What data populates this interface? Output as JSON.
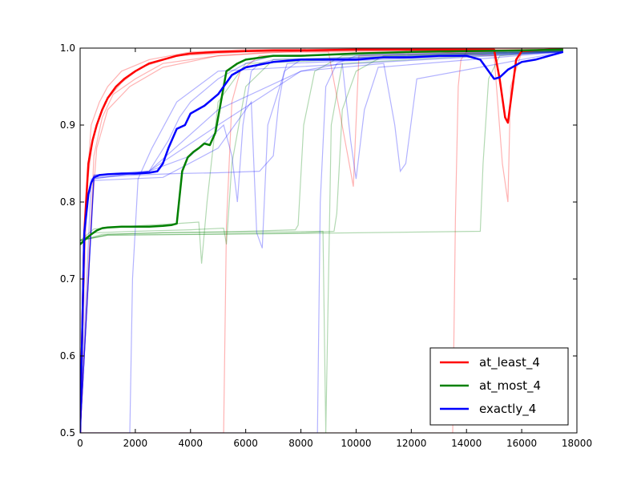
{
  "chart_data": {
    "type": "line",
    "title": "",
    "xlabel": "",
    "ylabel": "",
    "xlim": [
      0,
      18000
    ],
    "ylim": [
      0.5,
      1.0
    ],
    "x_ticks": [
      0,
      2000,
      4000,
      6000,
      8000,
      10000,
      12000,
      14000,
      16000,
      18000
    ],
    "y_ticks": [
      0.5,
      0.6,
      0.7,
      0.8,
      0.9,
      1.0
    ],
    "x_tick_labels": [
      "0",
      "2000",
      "4000",
      "6000",
      "8000",
      "10000",
      "12000",
      "14000",
      "16000",
      "18000"
    ],
    "y_tick_labels": [
      "0.5",
      "0.6",
      "0.7",
      "0.8",
      "0.9",
      "1.0"
    ],
    "grid": false,
    "legend_position": "lower-right",
    "series": [
      {
        "name": "at_least_4",
        "color": "#ff0000",
        "role": "mean",
        "x": [
          0,
          150,
          300,
          450,
          600,
          800,
          1000,
          1300,
          1600,
          2000,
          2500,
          3000,
          3500,
          4000,
          5000,
          6000,
          7000,
          8000,
          10000,
          12000,
          14000,
          15000,
          15200,
          15400,
          15500,
          15600,
          15800,
          16000,
          17000,
          17500
        ],
        "y": [
          0.5,
          0.76,
          0.85,
          0.88,
          0.9,
          0.92,
          0.935,
          0.95,
          0.96,
          0.97,
          0.98,
          0.985,
          0.99,
          0.993,
          0.995,
          0.996,
          0.997,
          0.997,
          0.998,
          0.998,
          0.998,
          0.998,
          0.96,
          0.91,
          0.903,
          0.93,
          0.985,
          0.996,
          0.998,
          0.998
        ]
      },
      {
        "name": "at_most_4",
        "color": "#008000",
        "role": "mean",
        "x": [
          0,
          200,
          400,
          600,
          800,
          1000,
          1500,
          2000,
          2500,
          3000,
          3300,
          3500,
          3700,
          3900,
          4100,
          4300,
          4500,
          4700,
          4900,
          5100,
          5300,
          5500,
          5700,
          6000,
          7000,
          8000,
          10000,
          12000,
          14000,
          16000,
          17500
        ],
        "y": [
          0.745,
          0.752,
          0.758,
          0.763,
          0.766,
          0.767,
          0.768,
          0.768,
          0.768,
          0.769,
          0.77,
          0.772,
          0.84,
          0.858,
          0.865,
          0.87,
          0.876,
          0.874,
          0.89,
          0.93,
          0.97,
          0.975,
          0.98,
          0.985,
          0.99,
          0.99,
          0.993,
          0.995,
          0.996,
          0.997,
          0.998
        ]
      },
      {
        "name": "exactly_4",
        "color": "#0000ff",
        "role": "mean",
        "x": [
          0,
          150,
          300,
          400,
          500,
          700,
          1000,
          1500,
          2000,
          2500,
          2800,
          3000,
          3200,
          3500,
          3800,
          4000,
          4500,
          5000,
          5500,
          6000,
          7000,
          8000,
          9000,
          10000,
          11000,
          12000,
          13000,
          14000,
          14500,
          15000,
          15200,
          15500,
          16000,
          16500,
          17000,
          17500
        ],
        "y": [
          0.5,
          0.76,
          0.81,
          0.825,
          0.832,
          0.835,
          0.836,
          0.837,
          0.837,
          0.838,
          0.84,
          0.85,
          0.87,
          0.895,
          0.9,
          0.915,
          0.925,
          0.94,
          0.965,
          0.975,
          0.982,
          0.985,
          0.985,
          0.985,
          0.988,
          0.988,
          0.99,
          0.99,
          0.985,
          0.96,
          0.962,
          0.972,
          0.982,
          0.985,
          0.99,
          0.995
        ]
      }
    ],
    "background_traces": [
      {
        "color": "#ff0000",
        "x": [
          0,
          200,
          400,
          700,
          1000,
          1500,
          2500,
          4000,
          6000,
          10000,
          17500
        ],
        "y": [
          0.5,
          0.8,
          0.9,
          0.93,
          0.95,
          0.97,
          0.985,
          0.995,
          0.998,
          0.999,
          0.999
        ]
      },
      {
        "color": "#ff0000",
        "x": [
          0,
          300,
          500,
          800,
          1200,
          2000,
          3000,
          5000,
          8000,
          17500
        ],
        "y": [
          0.5,
          0.7,
          0.86,
          0.91,
          0.94,
          0.96,
          0.98,
          0.99,
          0.996,
          0.998
        ]
      },
      {
        "color": "#ff0000",
        "x": [
          0,
          250,
          450,
          600,
          900,
          1500,
          2200,
          3500,
          6000,
          9000,
          9700,
          9900,
          10100,
          17500
        ],
        "y": [
          0.5,
          0.82,
          0.88,
          0.9,
          0.93,
          0.955,
          0.975,
          0.99,
          0.995,
          0.995,
          0.86,
          0.82,
          0.99,
          0.998
        ]
      },
      {
        "color": "#ff0000",
        "x": [
          0,
          350,
          600,
          1000,
          1800,
          3000,
          5000,
          7000,
          13000,
          15000,
          15300,
          15500,
          15600,
          16000,
          17500
        ],
        "y": [
          0.5,
          0.75,
          0.87,
          0.92,
          0.95,
          0.975,
          0.99,
          0.995,
          0.995,
          0.99,
          0.85,
          0.8,
          0.95,
          0.995,
          0.998
        ]
      },
      {
        "color": "#ff0000",
        "x": [
          0,
          5200,
          5300,
          5500,
          5800,
          6500,
          17500
        ],
        "y": [
          0.5,
          0.5,
          0.77,
          0.93,
          0.97,
          0.99,
          0.998
        ]
      },
      {
        "color": "#ff0000",
        "x": [
          0,
          13500,
          13600,
          13700,
          13800,
          14000,
          17500
        ],
        "y": [
          0.5,
          0.5,
          0.78,
          0.95,
          0.985,
          0.995,
          0.998
        ]
      },
      {
        "color": "#008000",
        "x": [
          0,
          500,
          1500,
          2500,
          3500,
          4300,
          4400,
          4600,
          5000,
          6000,
          17500
        ],
        "y": [
          0.75,
          0.765,
          0.768,
          0.77,
          0.772,
          0.774,
          0.72,
          0.8,
          0.93,
          0.98,
          0.996
        ]
      },
      {
        "color": "#008000",
        "x": [
          0,
          500,
          2000,
          4000,
          5200,
          5300,
          5500,
          6000,
          7000,
          17500
        ],
        "y": [
          0.75,
          0.76,
          0.762,
          0.764,
          0.766,
          0.745,
          0.85,
          0.95,
          0.985,
          0.996
        ]
      },
      {
        "color": "#008000",
        "x": [
          0,
          800,
          3000,
          6000,
          7800,
          7900,
          8100,
          8500,
          9500,
          17500
        ],
        "y": [
          0.75,
          0.758,
          0.76,
          0.762,
          0.764,
          0.77,
          0.9,
          0.97,
          0.99,
          0.996
        ]
      },
      {
        "color": "#008000",
        "x": [
          0,
          1000,
          4000,
          8000,
          9200,
          9300,
          9500,
          10000,
          11000,
          17500
        ],
        "y": [
          0.75,
          0.757,
          0.758,
          0.76,
          0.762,
          0.785,
          0.92,
          0.97,
          0.99,
          0.996
        ]
      },
      {
        "color": "#008000",
        "x": [
          0,
          1000,
          5000,
          10000,
          14500,
          14600,
          14800,
          15200,
          17500
        ],
        "y": [
          0.75,
          0.757,
          0.758,
          0.76,
          0.762,
          0.85,
          0.96,
          0.99,
          0.996
        ]
      },
      {
        "color": "#008000",
        "x": [
          0,
          1000,
          3000,
          8800,
          8900,
          9100,
          9500,
          17500
        ],
        "y": [
          0.75,
          0.758,
          0.76,
          0.762,
          0.5,
          0.9,
          0.98,
          0.996
        ]
      },
      {
        "color": "#0000ff",
        "x": [
          0,
          500,
          1500,
          2500,
          3200,
          3600,
          4000,
          5000,
          6000,
          7000,
          17500
        ],
        "y": [
          0.5,
          0.83,
          0.835,
          0.84,
          0.88,
          0.91,
          0.93,
          0.96,
          0.98,
          0.99,
          0.996
        ]
      },
      {
        "color": "#0000ff",
        "x": [
          0,
          1800,
          1900,
          2100,
          2600,
          3500,
          5000,
          17500
        ],
        "y": [
          0.5,
          0.5,
          0.7,
          0.83,
          0.87,
          0.93,
          0.97,
          0.995
        ]
      },
      {
        "color": "#0000ff",
        "x": [
          0,
          500,
          2000,
          3500,
          5000,
          6500,
          7000,
          7200,
          7400,
          8000,
          17500
        ],
        "y": [
          0.5,
          0.832,
          0.835,
          0.837,
          0.838,
          0.84,
          0.86,
          0.93,
          0.97,
          0.985,
          0.995
        ]
      },
      {
        "color": "#0000ff",
        "x": [
          0,
          400,
          2500,
          4000,
          5200,
          5500,
          5700,
          5900,
          6200,
          6500,
          7000,
          17500
        ],
        "y": [
          0.5,
          0.83,
          0.84,
          0.86,
          0.9,
          0.86,
          0.8,
          0.9,
          0.97,
          0.98,
          0.985,
          0.995
        ]
      },
      {
        "color": "#0000ff",
        "x": [
          0,
          500,
          3000,
          5000,
          6200,
          6400,
          6600,
          6800,
          7500,
          17500
        ],
        "y": [
          0.5,
          0.828,
          0.832,
          0.87,
          0.93,
          0.76,
          0.74,
          0.9,
          0.98,
          0.995
        ]
      },
      {
        "color": "#0000ff",
        "x": [
          0,
          8600,
          8700,
          8900,
          9300,
          10000,
          17500
        ],
        "y": [
          0.5,
          0.5,
          0.8,
          0.95,
          0.98,
          0.99,
          0.996
        ]
      },
      {
        "color": "#0000ff",
        "x": [
          0,
          500,
          2500,
          5000,
          8000,
          11000,
          11400,
          11600,
          11800,
          12200,
          17500
        ],
        "y": [
          0.5,
          0.835,
          0.84,
          0.9,
          0.97,
          0.98,
          0.9,
          0.84,
          0.85,
          0.96,
          0.995
        ]
      },
      {
        "color": "#0000ff",
        "x": [
          0,
          500,
          2500,
          5000,
          8000,
          9500,
          9800,
          10000,
          10300,
          10800,
          17500
        ],
        "y": [
          0.5,
          0.835,
          0.84,
          0.92,
          0.97,
          0.98,
          0.88,
          0.83,
          0.92,
          0.975,
          0.995
        ]
      }
    ]
  }
}
